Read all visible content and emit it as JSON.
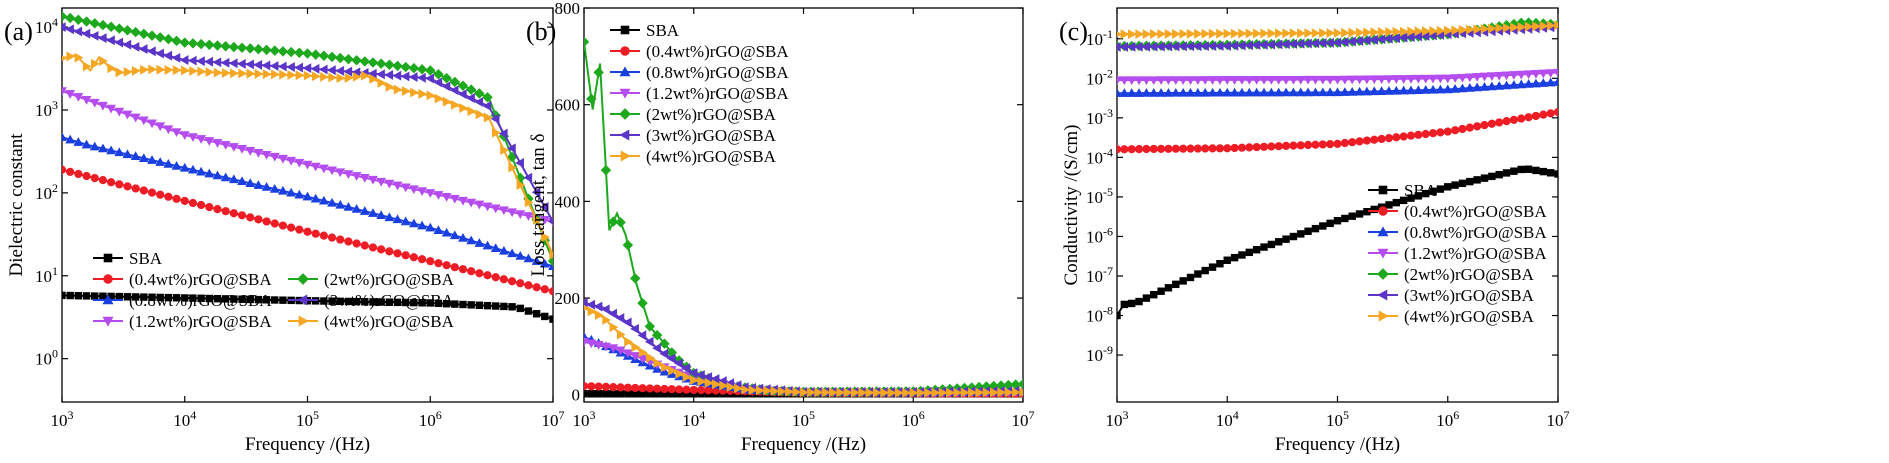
{
  "chart_data": [
    {
      "type": "line",
      "panel_label": "(a)",
      "xlabel": "Frequency /(Hz)",
      "ylabel": "Dielectric constant",
      "xscale": "log",
      "yscale": "log",
      "xlim": [
        1000,
        10000000
      ],
      "ylim": [
        0.3,
        17000
      ],
      "xticks": [
        {
          "v": 1000,
          "b": "10",
          "e": "3"
        },
        {
          "v": 10000,
          "b": "10",
          "e": "4"
        },
        {
          "v": 100000,
          "b": "10",
          "e": "5"
        },
        {
          "v": 1000000,
          "b": "10",
          "e": "6"
        },
        {
          "v": 10000000,
          "b": "10",
          "e": "7"
        }
      ],
      "yticks": [
        {
          "v": 1,
          "b": "10",
          "e": "0"
        },
        {
          "v": 10,
          "b": "10",
          "e": "1"
        },
        {
          "v": 100,
          "b": "10",
          "e": "2"
        },
        {
          "v": 1000,
          "b": "10",
          "e": "3"
        },
        {
          "v": 10000,
          "b": "10",
          "e": "4"
        }
      ],
      "legend_position": "bottom-left, two columns",
      "series": [
        {
          "name": "SBA",
          "color": "#000000",
          "marker": "square",
          "x": [
            1000,
            10000,
            100000,
            1000000,
            5000000,
            10000000
          ],
          "y": [
            5.8,
            5.4,
            5.0,
            4.7,
            4.2,
            3.0
          ]
        },
        {
          "name": "(0.4wt%)rGO@SBA",
          "color": "#ee1c25",
          "marker": "circle",
          "x": [
            1000,
            10000,
            100000,
            1000000,
            10000000
          ],
          "y": [
            190,
            80,
            34,
            15,
            6.5
          ]
        },
        {
          "name": "(0.8wt%)rGO@SBA",
          "color": "#1a3fe0",
          "marker": "triangle-up",
          "x": [
            1000,
            1600,
            10000,
            100000,
            1000000,
            10000000
          ],
          "y": [
            470,
            380,
            200,
            90,
            38,
            13
          ]
        },
        {
          "name": "(1.2wt%)rGO@SBA",
          "color": "#b44cf0",
          "marker": "triangle-down",
          "x": [
            1000,
            10000,
            100000,
            1000000,
            10000000
          ],
          "y": [
            1700,
            500,
            220,
            100,
            45
          ]
        },
        {
          "name": "(2wt%)rGO@SBA",
          "color": "#1ea81e",
          "marker": "diamond",
          "x": [
            1000,
            10000,
            100000,
            1000000,
            3000000,
            10000000
          ],
          "y": [
            13500,
            6500,
            4800,
            3000,
            1400,
            15
          ]
        },
        {
          "name": "(3wt%)rGO@SBA",
          "color": "#5a35c8",
          "marker": "triangle-left",
          "x": [
            1000,
            10000,
            100000,
            1000000,
            3000000,
            10000000
          ],
          "y": [
            10000,
            4000,
            3200,
            2400,
            1100,
            45
          ]
        },
        {
          "name": "(4wt%)rGO@SBA",
          "color": "#f5a623",
          "marker": "triangle-right",
          "x": [
            1000,
            1300,
            1700,
            2000,
            2500,
            3000,
            5000,
            10000,
            20000,
            50000,
            100000,
            200000,
            300000,
            500000,
            1000000,
            3000000,
            10000000
          ],
          "y": [
            4200,
            4600,
            3000,
            4300,
            3200,
            2800,
            3100,
            3000,
            2800,
            2700,
            2600,
            2400,
            2600,
            1800,
            1500,
            800,
            18
          ]
        }
      ]
    },
    {
      "type": "line",
      "panel_label": "(b)",
      "xlabel": "Frequency /(Hz)",
      "ylabel": "Loss tangent, tan δ",
      "xscale": "log",
      "yscale": "linear",
      "xlim": [
        1000,
        10000000
      ],
      "ylim": [
        -15,
        800
      ],
      "xticks": [
        {
          "v": 1000,
          "b": "10",
          "e": "3"
        },
        {
          "v": 10000,
          "b": "10",
          "e": "4"
        },
        {
          "v": 100000,
          "b": "10",
          "e": "5"
        },
        {
          "v": 1000000,
          "b": "10",
          "e": "6"
        },
        {
          "v": 10000000,
          "b": "10",
          "e": "7"
        }
      ],
      "yticks": [
        {
          "v": 0,
          "b": "0",
          "e": ""
        },
        {
          "v": 200,
          "b": "200",
          "e": ""
        },
        {
          "v": 400,
          "b": "400",
          "e": ""
        },
        {
          "v": 600,
          "b": "600",
          "e": ""
        },
        {
          "v": 800,
          "b": "800",
          "e": ""
        }
      ],
      "legend_position": "top-right",
      "series": [
        {
          "name": "SBA",
          "color": "#000000",
          "marker": "square",
          "x": [
            1000,
            10000,
            100000,
            1000000,
            10000000
          ],
          "y": [
            2,
            2,
            2,
            2,
            2
          ]
        },
        {
          "name": "(0.4wt%)rGO@SBA",
          "color": "#ee1c25",
          "marker": "circle",
          "x": [
            1000,
            3000,
            10000,
            100000,
            1000000,
            10000000
          ],
          "y": [
            18,
            14,
            10,
            4,
            3,
            2
          ]
        },
        {
          "name": "(0.8wt%)rGO@SBA",
          "color": "#1a3fe0",
          "marker": "triangle-up",
          "x": [
            1000,
            2000,
            5000,
            10000,
            30000,
            100000,
            1000000,
            10000000
          ],
          "y": [
            120,
            90,
            50,
            28,
            10,
            5,
            4,
            6
          ]
        },
        {
          "name": "(1.2wt%)rGO@SBA",
          "color": "#b44cf0",
          "marker": "triangle-down",
          "x": [
            1000,
            2000,
            5000,
            10000,
            30000,
            100000,
            1000000,
            10000000
          ],
          "y": [
            110,
            95,
            60,
            35,
            12,
            6,
            5,
            5
          ]
        },
        {
          "name": "(2wt%)rGO@SBA",
          "color": "#1ea81e",
          "marker": "diamond",
          "x": [
            1000,
            1200,
            1400,
            1700,
            2000,
            2400,
            3000,
            4000,
            5000,
            7000,
            10000,
            20000,
            50000,
            100000,
            1000000,
            10000000
          ],
          "y": [
            730,
            590,
            685,
            340,
            375,
            330,
            230,
            140,
            115,
            75,
            45,
            20,
            8,
            6,
            7,
            22
          ]
        },
        {
          "name": "(3wt%)rGO@SBA",
          "color": "#5a35c8",
          "marker": "triangle-left",
          "x": [
            1000,
            1500,
            2500,
            5000,
            10000,
            30000,
            100000,
            1000000,
            10000000
          ],
          "y": [
            190,
            180,
            150,
            90,
            45,
            15,
            6,
            6,
            8
          ]
        },
        {
          "name": "(4wt%)rGO@SBA",
          "color": "#f5a623",
          "marker": "triangle-right",
          "x": [
            1000,
            1500,
            2500,
            5000,
            10000,
            30000,
            100000,
            1000000,
            10000000
          ],
          "y": [
            180,
            160,
            110,
            60,
            30,
            10,
            5,
            4,
            5
          ]
        }
      ]
    },
    {
      "type": "line",
      "panel_label": "(c)",
      "xlabel": "Frequency /(Hz)",
      "ylabel": "Conductivity /(S/cm)",
      "xscale": "log",
      "yscale": "log",
      "xlim": [
        1000,
        10000000
      ],
      "ylim": [
        6.5e-11,
        0.6
      ],
      "xticks": [
        {
          "v": 1000,
          "b": "10",
          "e": "3"
        },
        {
          "v": 10000,
          "b": "10",
          "e": "4"
        },
        {
          "v": 100000,
          "b": "10",
          "e": "5"
        },
        {
          "v": 1000000,
          "b": "10",
          "e": "6"
        },
        {
          "v": 10000000,
          "b": "10",
          "e": "7"
        }
      ],
      "yticks": [
        {
          "v": 1e-09,
          "b": "10",
          "e": "-9"
        },
        {
          "v": 1e-08,
          "b": "10",
          "e": "-8"
        },
        {
          "v": 1e-07,
          "b": "10",
          "e": "-7"
        },
        {
          "v": 1e-06,
          "b": "10",
          "e": "-6"
        },
        {
          "v": 1e-05,
          "b": "10",
          "e": "-5"
        },
        {
          "v": 0.0001,
          "b": "10",
          "e": "-4"
        },
        {
          "v": 0.001,
          "b": "10",
          "e": "-3"
        },
        {
          "v": 0.01,
          "b": "10",
          "e": "-2"
        },
        {
          "v": 0.1,
          "b": "10",
          "e": "-1"
        }
      ],
      "legend_position": "bottom-right",
      "series": [
        {
          "name": "SBA",
          "color": "#000000",
          "marker": "square",
          "x": [
            1000,
            1150,
            1500,
            10000,
            100000,
            1000000,
            5000000,
            10000000
          ],
          "y": [
            1e-08,
            1.9e-08,
            2.1e-08,
            2.5e-07,
            2.5e-06,
            1.8e-05,
            5.2e-05,
            3.8e-05
          ]
        },
        {
          "name": "(0.4wt%)rGO@SBA",
          "color": "#ee1c25",
          "marker": "circle",
          "x": [
            1000,
            10000,
            100000,
            1000000,
            10000000
          ],
          "y": [
            0.00016,
            0.00017,
            0.00022,
            0.00045,
            0.0014
          ]
        },
        {
          "name": "(0.8wt%)rGO@SBA",
          "color": "#1a3fe0",
          "marker": "triangle-up",
          "x": [
            1000,
            100000,
            1000000,
            10000000
          ],
          "y": [
            0.0042,
            0.0044,
            0.0052,
            0.008
          ]
        },
        {
          "name": "(1.2wt%)rGO@SBA",
          "color": "#b44cf0",
          "marker": "triangle-down",
          "x": [
            1000,
            100000,
            1000000,
            10000000
          ],
          "y": [
            0.009,
            0.0093,
            0.01,
            0.014
          ]
        },
        {
          "name": "(2wt%)rGO@SBA",
          "color": "#1ea81e",
          "marker": "diamond",
          "x": [
            1000,
            10000,
            100000,
            1000000,
            5000000,
            10000000
          ],
          "y": [
            0.065,
            0.07,
            0.08,
            0.13,
            0.26,
            0.23
          ]
        },
        {
          "name": "(3wt%)rGO@SBA",
          "color": "#5a35c8",
          "marker": "triangle-left",
          "x": [
            1000,
            10000,
            100000,
            1000000,
            10000000
          ],
          "y": [
            0.062,
            0.066,
            0.08,
            0.13,
            0.2
          ]
        },
        {
          "name": "(4wt%)rGO@SBA",
          "color": "#f5a623",
          "marker": "triangle-right",
          "x": [
            1000,
            100000,
            1000000,
            10000000
          ],
          "y": [
            0.13,
            0.14,
            0.16,
            0.22
          ]
        }
      ]
    }
  ]
}
